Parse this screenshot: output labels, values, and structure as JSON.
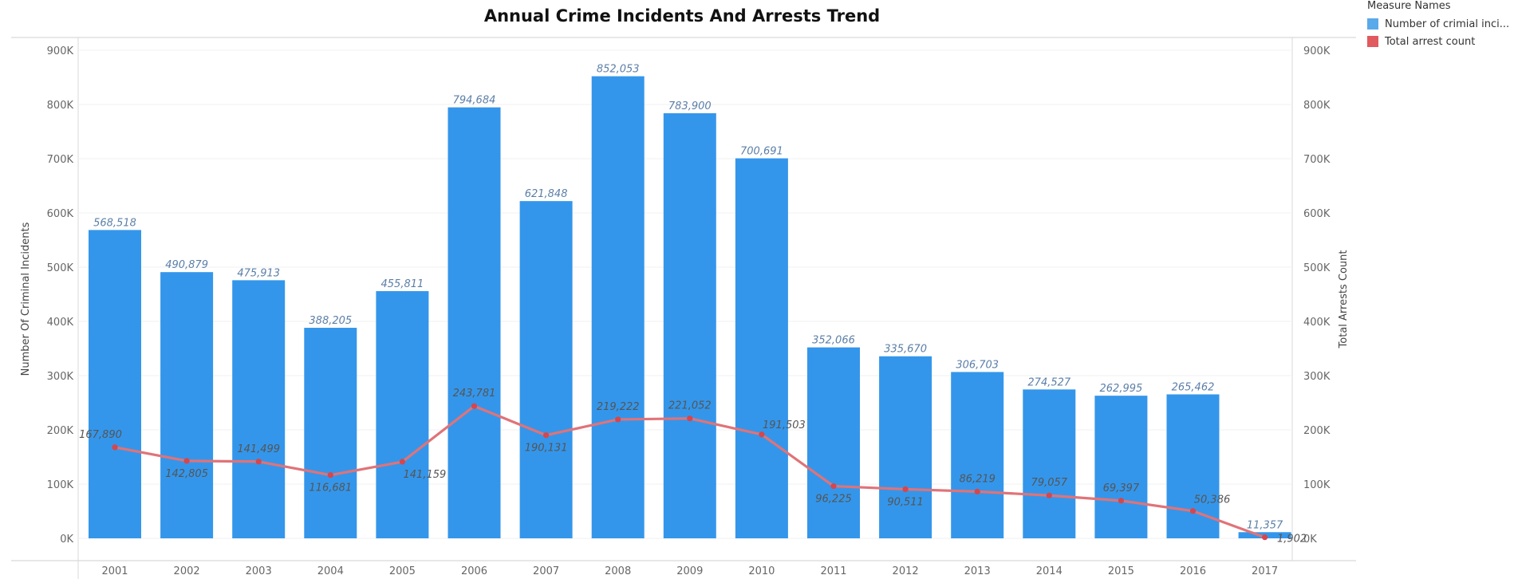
{
  "chart_data": {
    "type": "bar",
    "title": "Annual Crime Incidents And Arrests Trend",
    "legend_title": "Measure Names",
    "legend_position": "top-right",
    "ylabel_left": "Number Of Criminal Incidents",
    "ylabel_right": "Total Arrests Count",
    "ylim": [
      0,
      900000
    ],
    "yticks": [
      "0K",
      "100K",
      "200K",
      "300K",
      "400K",
      "500K",
      "600K",
      "700K",
      "800K",
      "900K"
    ],
    "categories": [
      "2001",
      "2002",
      "2003",
      "2004",
      "2005",
      "2006",
      "2007",
      "2008",
      "2009",
      "2010",
      "2011",
      "2012",
      "2013",
      "2014",
      "2015",
      "2016",
      "2017"
    ],
    "series": [
      {
        "name": "Number of crimial inci...",
        "type": "bar",
        "color": "#3496ea",
        "values": [
          568518,
          490879,
          475913,
          388205,
          455811,
          794684,
          621848,
          852053,
          783900,
          700691,
          352066,
          335670,
          306703,
          274527,
          262995,
          265462,
          11357
        ],
        "labels": [
          "568,518",
          "490,879",
          "475,913",
          "388,205",
          "455,811",
          "794,684",
          "621,848",
          "852,053",
          "783,900",
          "700,691",
          "352,066",
          "335,670",
          "306,703",
          "274,527",
          "262,995",
          "265,462",
          "11,357"
        ]
      },
      {
        "name": "Total arrest count",
        "type": "line",
        "color": "#e07378",
        "values": [
          167890,
          142805,
          141499,
          116681,
          141159,
          243781,
          190131,
          219222,
          221052,
          191503,
          96225,
          90511,
          86219,
          79057,
          69397,
          50386,
          1902
        ],
        "labels": [
          "167,890",
          "142,805",
          "141,499",
          "116,681",
          "141,159",
          "243,781",
          "190,131",
          "219,222",
          "221,052",
          "191,503",
          "96,225",
          "90,511",
          "86,219",
          "79,057",
          "69,397",
          "50,386",
          "1,902"
        ]
      }
    ]
  }
}
